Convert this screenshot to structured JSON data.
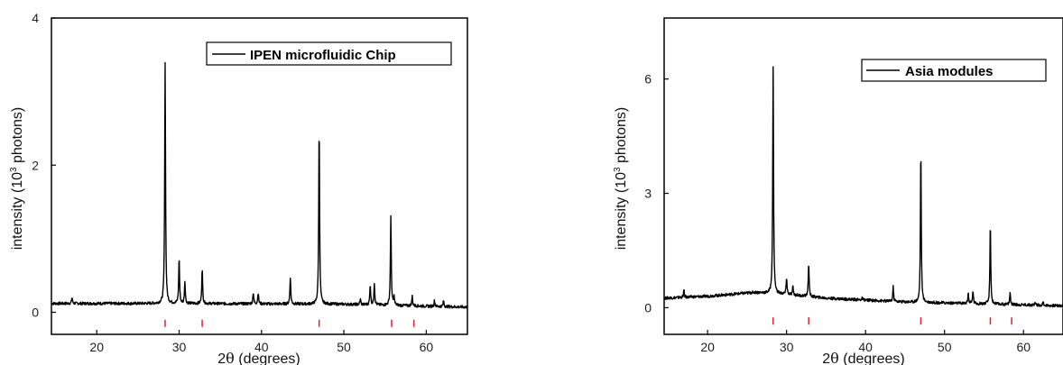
{
  "chart_data": [
    {
      "type": "line",
      "title": "",
      "xlabel_prefix": "2",
      "xlabel_theta": "θ",
      "xlabel_suffix": " (degrees)",
      "ylabel_prefix": "intensity (10",
      "ylabel_sup": "3",
      "ylabel_suffix": " photons)",
      "xlim": [
        14.5,
        65
      ],
      "ylim": [
        -0.3,
        4.0
      ],
      "xticks": [
        20,
        30,
        40,
        50,
        60
      ],
      "xtick_labels": [
        "20",
        "30",
        "40",
        "50",
        "60"
      ],
      "yticks": [
        0,
        2,
        4
      ],
      "ytick_labels": [
        "0",
        "2",
        "4"
      ],
      "legend": {
        "label": "IPEN microfluidic Chip",
        "placement": "top-right"
      },
      "baseline": [
        [
          14.5,
          0.12
        ],
        [
          30,
          0.12
        ],
        [
          50,
          0.11
        ],
        [
          65,
          0.07
        ]
      ],
      "peaks": [
        {
          "x": 17.0,
          "y": 0.2
        },
        {
          "x": 28.3,
          "y": 3.4
        },
        {
          "x": 30.0,
          "y": 0.75
        },
        {
          "x": 30.7,
          "y": 0.42
        },
        {
          "x": 32.8,
          "y": 0.6
        },
        {
          "x": 39.0,
          "y": 0.27
        },
        {
          "x": 39.6,
          "y": 0.27
        },
        {
          "x": 43.5,
          "y": 0.48
        },
        {
          "x": 47.0,
          "y": 2.57
        },
        {
          "x": 52.0,
          "y": 0.18
        },
        {
          "x": 53.2,
          "y": 0.38
        },
        {
          "x": 53.7,
          "y": 0.4
        },
        {
          "x": 55.7,
          "y": 1.3
        },
        {
          "x": 56.1,
          "y": 0.2
        },
        {
          "x": 58.3,
          "y": 0.22
        },
        {
          "x": 61.0,
          "y": 0.16
        },
        {
          "x": 62.1,
          "y": 0.16
        }
      ],
      "reference_marks_x": [
        28.3,
        32.8,
        47.0,
        55.8,
        58.5
      ],
      "reference_mark_color": "#e8202a",
      "line_color": "#000000"
    },
    {
      "type": "line",
      "title": "",
      "xlabel_prefix": "2",
      "xlabel_theta": "θ",
      "xlabel_suffix": " (degrees)",
      "ylabel_prefix": "intensity (10",
      "ylabel_sup": "3",
      "ylabel_suffix": " photons)",
      "xlim": [
        14.5,
        65
      ],
      "ylim": [
        -0.7,
        7.6
      ],
      "xticks": [
        20,
        30,
        40,
        50,
        60
      ],
      "xtick_labels": [
        "20",
        "30",
        "40",
        "50",
        "60"
      ],
      "yticks": [
        0,
        3,
        6
      ],
      "ytick_labels": [
        "0",
        "3",
        "6"
      ],
      "legend": {
        "label": "Asia modules",
        "placement": "top-right"
      },
      "baseline": [
        [
          14.5,
          0.25
        ],
        [
          20,
          0.3
        ],
        [
          26,
          0.4
        ],
        [
          30,
          0.35
        ],
        [
          35,
          0.25
        ],
        [
          45,
          0.15
        ],
        [
          55,
          0.1
        ],
        [
          65,
          0.05
        ]
      ],
      "peaks": [
        {
          "x": 17.0,
          "y": 0.45
        },
        {
          "x": 28.3,
          "y": 6.35
        },
        {
          "x": 30.0,
          "y": 0.8
        },
        {
          "x": 30.8,
          "y": 0.55
        },
        {
          "x": 32.8,
          "y": 1.2
        },
        {
          "x": 39.6,
          "y": 0.25
        },
        {
          "x": 43.5,
          "y": 0.55
        },
        {
          "x": 47.0,
          "y": 4.2
        },
        {
          "x": 53.0,
          "y": 0.4
        },
        {
          "x": 53.6,
          "y": 0.45
        },
        {
          "x": 55.8,
          "y": 2.2
        },
        {
          "x": 58.3,
          "y": 0.4
        },
        {
          "x": 61.5,
          "y": 0.15
        },
        {
          "x": 62.5,
          "y": 0.15
        }
      ],
      "reference_marks_x": [
        28.3,
        32.8,
        47.0,
        55.8,
        58.5
      ],
      "reference_mark_color": "#e8202a",
      "line_color": "#000000"
    }
  ]
}
